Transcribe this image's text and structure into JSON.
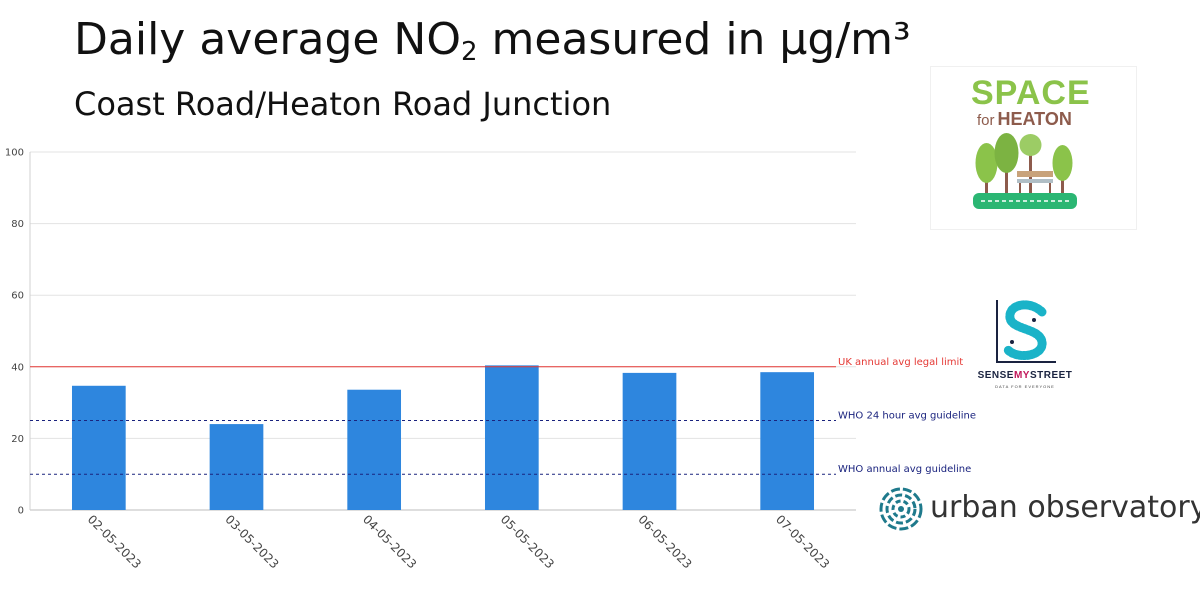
{
  "title_main": "Daily average NO",
  "title_sub": "2",
  "title_rest": " measured in µg/m³",
  "subtitle": "Coast Road/Heaton Road Junction",
  "logos": {
    "space_for_heaton": {
      "word1": "SPACE",
      "word2_for": "for",
      "word2_name": "HEATON"
    },
    "sense_my_street": {
      "name_part1": "SENSE",
      "name_part2": "MY",
      "name_part3": "STREET",
      "tagline": "DATA FOR EVERYONE"
    },
    "urban_observatory": {
      "name": "urban observatory"
    }
  },
  "colors": {
    "bar": "#2e86de",
    "uk_limit": "#e53935",
    "who_guideline": "#1a237e",
    "grid": "#e3e3e3",
    "space_green": "#8bc34a",
    "space_brown": "#8d5b4c",
    "sms_teal": "#1ab3c8",
    "sms_pink": "#c2185b",
    "uo_teal": "#1f7a8c"
  },
  "chart_data": {
    "type": "bar",
    "categories": [
      "02-05-2023",
      "03-05-2023",
      "04-05-2023",
      "05-05-2023",
      "06-05-2023",
      "07-05-2023"
    ],
    "values": [
      34.7,
      24.0,
      33.6,
      40.4,
      38.3,
      38.5
    ],
    "ylim": [
      0,
      100
    ],
    "yticks": [
      0,
      20,
      40,
      60,
      80,
      100
    ],
    "grid": true,
    "reference_lines": [
      {
        "label": "UK annual avg legal limit",
        "value": 40,
        "style": "solid",
        "color": "#e53935"
      },
      {
        "label": "WHO 24 hour avg guideline",
        "value": 25,
        "style": "dashed",
        "color": "#1a237e"
      },
      {
        "label": "WHO annual avg guideline",
        "value": 10,
        "style": "dashed",
        "color": "#1a237e"
      }
    ]
  }
}
